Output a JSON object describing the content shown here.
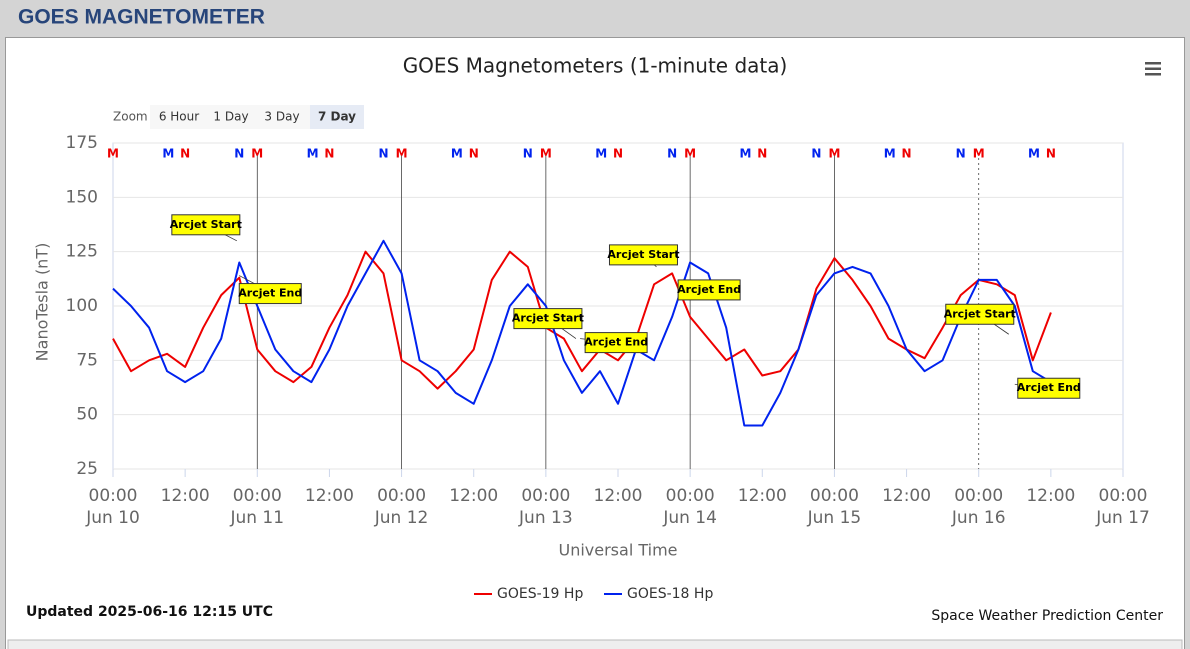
{
  "header": {
    "title": "GOES MAGNETOMETER"
  },
  "zoom": {
    "label": "Zoom",
    "buttons": [
      "6 Hour",
      "1 Day",
      "3 Day",
      "7 Day"
    ],
    "selected": "7 Day"
  },
  "chart_data": {
    "type": "line",
    "title": "GOES Magnetometers (1-minute data)",
    "x_label": "Universal Time",
    "y_label": "NanoTesla (nT)",
    "x": [
      0,
      3,
      6,
      9,
      12,
      15,
      18,
      21,
      24,
      27,
      30,
      33,
      36,
      39,
      42,
      45,
      48,
      51,
      54,
      57,
      60,
      63,
      66,
      69,
      72,
      75,
      78,
      81,
      84,
      87,
      90,
      93,
      96,
      99,
      102,
      105,
      108,
      111,
      114,
      117,
      120,
      123,
      126,
      129,
      132,
      135,
      138,
      141,
      144,
      147,
      150,
      153,
      156
    ],
    "series": [
      {
        "name": "GOES-19 Hp",
        "color": "#ee0000",
        "values": [
          85,
          70,
          75,
          78,
          72,
          90,
          105,
          113,
          80,
          70,
          65,
          72,
          90,
          105,
          125,
          115,
          75,
          70,
          62,
          70,
          80,
          112,
          125,
          118,
          90,
          85,
          70,
          80,
          75,
          85,
          110,
          115,
          95,
          85,
          75,
          80,
          68,
          70,
          80,
          108,
          122,
          112,
          100,
          85,
          80,
          76,
          90,
          105,
          112,
          110,
          105,
          75,
          97
        ]
      },
      {
        "name": "GOES-18 Hp",
        "color": "#0022ee",
        "values": [
          108,
          100,
          90,
          70,
          65,
          70,
          85,
          120,
          100,
          80,
          70,
          65,
          80,
          100,
          115,
          130,
          115,
          75,
          70,
          60,
          55,
          75,
          100,
          110,
          100,
          75,
          60,
          70,
          55,
          80,
          75,
          95,
          120,
          115,
          90,
          45,
          45,
          60,
          80,
          105,
          115,
          118,
          115,
          100,
          80,
          70,
          75,
          95,
          112,
          112,
          100,
          70,
          65
        ]
      }
    ],
    "xlim": [
      0,
      168
    ],
    "xticks": [
      {
        "value": 0,
        "label": "00:00\nJun 10"
      },
      {
        "value": 12,
        "label": "12:00"
      },
      {
        "value": 24,
        "label": "00:00\nJun 11"
      },
      {
        "value": 36,
        "label": "12:00"
      },
      {
        "value": 48,
        "label": "00:00\nJun 12"
      },
      {
        "value": 60,
        "label": "12:00"
      },
      {
        "value": 72,
        "label": "00:00\nJun 13"
      },
      {
        "value": 84,
        "label": "12:00"
      },
      {
        "value": 96,
        "label": "00:00\nJun 14"
      },
      {
        "value": 108,
        "label": "12:00"
      },
      {
        "value": 120,
        "label": "00:00\nJun 15"
      },
      {
        "value": 132,
        "label": "12:00"
      },
      {
        "value": 144,
        "label": "00:00\nJun 16"
      },
      {
        "value": 156,
        "label": "12:00"
      },
      {
        "value": 168,
        "label": "00:00\nJun 17"
      }
    ],
    "ylim": [
      25,
      175
    ],
    "yticks": [
      25,
      50,
      75,
      100,
      125,
      150,
      175
    ],
    "grid": true,
    "markers": [
      {
        "label": "M",
        "color": "#ee0000",
        "x": [
          0,
          24,
          48,
          72,
          96,
          120,
          144
        ]
      },
      {
        "label": "N",
        "color": "#ee0000",
        "x": [
          12,
          36,
          60,
          84,
          108,
          132,
          156
        ]
      },
      {
        "label": "M",
        "color": "#0022ee",
        "x": [
          9.2,
          33.2,
          57.2,
          81.2,
          105.2,
          129.2,
          153.2
        ]
      },
      {
        "label": "N",
        "color": "#0022ee",
        "x": [
          21,
          45,
          69,
          93,
          117,
          141
        ]
      }
    ],
    "annotations": [
      {
        "text": "Arcjet Start",
        "x": 20.6,
        "y": 130
      },
      {
        "text": "Arcjet End",
        "x": 21,
        "y": 114
      },
      {
        "text": "Arcjet Start",
        "x": 77,
        "y": 85
      },
      {
        "text": "Arcjet End",
        "x": 77.7,
        "y": 85
      },
      {
        "text": "Arcjet Start",
        "x": 90.4,
        "y": 118
      },
      {
        "text": "Arcjet End",
        "x": 94,
        "y": 112
      },
      {
        "text": "Arcjet Start",
        "x": 149,
        "y": 87
      },
      {
        "text": "Arcjet End",
        "x": 150,
        "y": 64
      }
    ],
    "legend": "bottom"
  },
  "footer": {
    "updated": "Updated 2025-06-16 12:15 UTC",
    "credit": "Space Weather Prediction Center"
  }
}
